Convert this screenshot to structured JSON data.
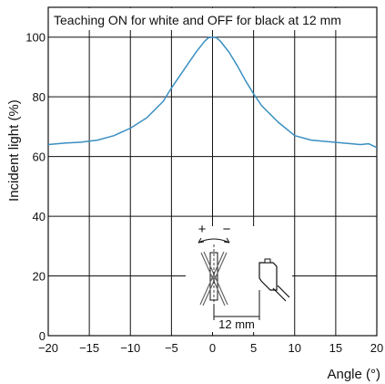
{
  "chart_data": {
    "type": "line",
    "title": "Teaching ON for white and OFF for black at 12 mm",
    "xlabel": "Angle (°)",
    "ylabel": "Incident light (%)",
    "xlim": [
      -20,
      20
    ],
    "ylim": [
      0,
      110
    ],
    "xticks": [
      -20,
      -15,
      -10,
      -5,
      0,
      5,
      10,
      15,
      20
    ],
    "yticks": [
      0,
      20,
      40,
      60,
      80,
      100
    ],
    "xtick_labels": [
      "−20",
      "−15",
      "−10",
      "−5",
      "0",
      "5",
      "10",
      "15",
      "20"
    ],
    "ytick_labels": [
      "0",
      "20",
      "40",
      "60",
      "80",
      "100"
    ],
    "grid": true,
    "line_color": "#3a8fc2",
    "series": [
      {
        "x": [
          -20,
          -18,
          -16,
          -14,
          -12,
          -10,
          -8,
          -6,
          -5,
          -4,
          -3,
          -2,
          -1,
          -0.5,
          0,
          0.5,
          1,
          2,
          3,
          4,
          5,
          6,
          8,
          10,
          12,
          14,
          16,
          18,
          19,
          20
        ],
        "values": [
          64.0,
          64.5,
          64.8,
          65.5,
          67.0,
          69.5,
          73.0,
          78.5,
          83.0,
          87.0,
          91.0,
          95.0,
          98.5,
          99.8,
          100.0,
          99.8,
          98.5,
          95.0,
          90.5,
          85.5,
          81.0,
          77.0,
          71.5,
          67.0,
          65.5,
          65.0,
          64.5,
          64.0,
          64.3,
          63.0
        ]
      }
    ],
    "inset": {
      "plus_label": "+",
      "minus_label": "−",
      "distance_label": "12 mm"
    }
  }
}
